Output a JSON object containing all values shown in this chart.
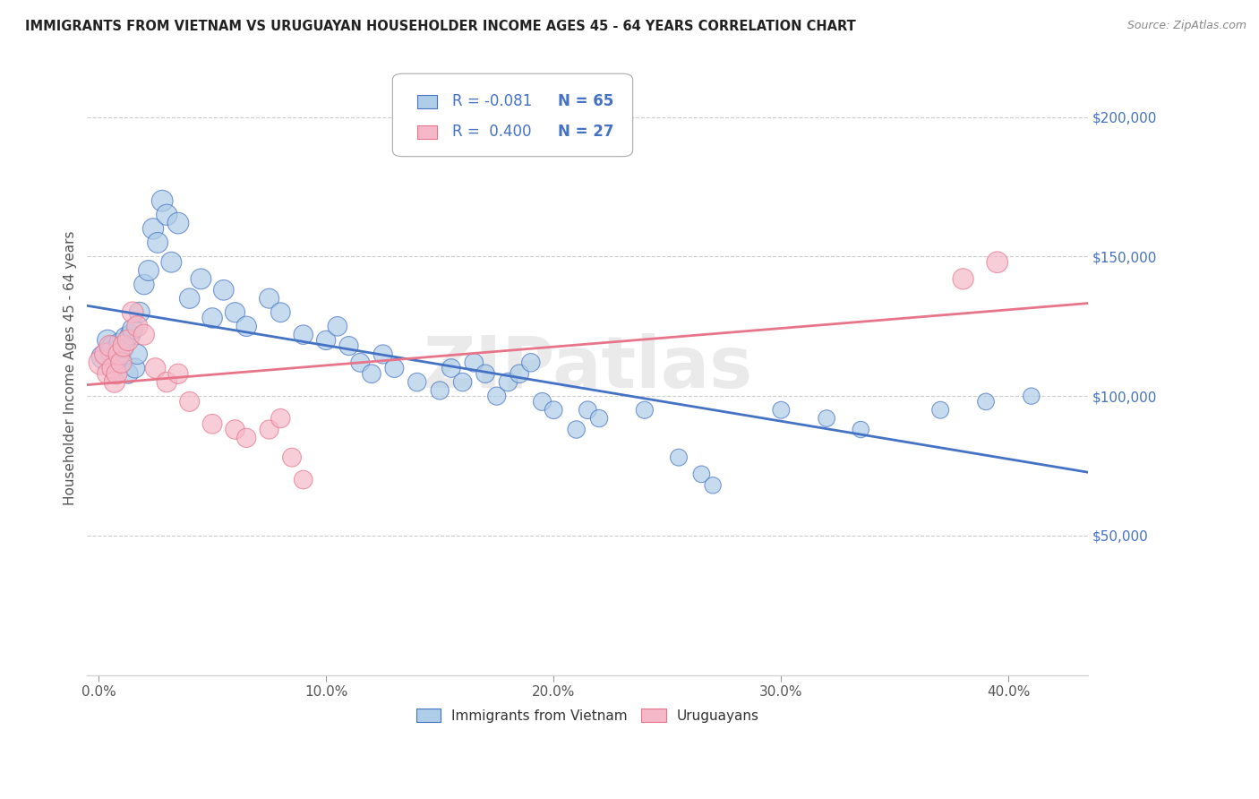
{
  "title": "IMMIGRANTS FROM VIETNAM VS URUGUAYAN HOUSEHOLDER INCOME AGES 45 - 64 YEARS CORRELATION CHART",
  "source": "Source: ZipAtlas.com",
  "ylabel": "Householder Income Ages 45 - 64 years",
  "xlabel_ticks": [
    "0.0%",
    "10.0%",
    "20.0%",
    "30.0%",
    "40.0%"
  ],
  "xlabel_vals": [
    0.0,
    0.1,
    0.2,
    0.3,
    0.4
  ],
  "ytick_labels": [
    "$50,000",
    "$100,000",
    "$150,000",
    "$200,000"
  ],
  "ytick_vals": [
    50000,
    100000,
    150000,
    200000
  ],
  "xlim": [
    -0.005,
    0.435
  ],
  "ylim": [
    0,
    220000
  ],
  "legend_label1": "Immigrants from Vietnam",
  "legend_label2": "Uruguayans",
  "r1": "-0.081",
  "n1": "65",
  "r2": "0.400",
  "n2": "27",
  "blue_color": "#aecde8",
  "pink_color": "#f5b8c8",
  "line_blue": "#4472c4",
  "line_pink": "#e8748a",
  "title_color": "#222222",
  "watermark": "ZIPatlas",
  "blue_scatter_x": [
    0.002,
    0.004,
    0.005,
    0.006,
    0.007,
    0.008,
    0.009,
    0.01,
    0.011,
    0.012,
    0.013,
    0.014,
    0.015,
    0.016,
    0.017,
    0.018,
    0.02,
    0.022,
    0.024,
    0.026,
    0.028,
    0.03,
    0.032,
    0.035,
    0.04,
    0.045,
    0.05,
    0.055,
    0.06,
    0.065,
    0.075,
    0.08,
    0.09,
    0.1,
    0.105,
    0.11,
    0.115,
    0.12,
    0.125,
    0.13,
    0.14,
    0.15,
    0.155,
    0.16,
    0.165,
    0.17,
    0.175,
    0.18,
    0.185,
    0.19,
    0.195,
    0.2,
    0.21,
    0.215,
    0.22,
    0.24,
    0.255,
    0.265,
    0.27,
    0.3,
    0.32,
    0.335,
    0.37,
    0.39,
    0.41
  ],
  "blue_scatter_y": [
    114000,
    120000,
    116000,
    118000,
    112000,
    115000,
    119000,
    113000,
    117000,
    121000,
    108000,
    122000,
    124000,
    110000,
    115000,
    130000,
    140000,
    145000,
    160000,
    155000,
    170000,
    165000,
    148000,
    162000,
    135000,
    142000,
    128000,
    138000,
    130000,
    125000,
    135000,
    130000,
    122000,
    120000,
    125000,
    118000,
    112000,
    108000,
    115000,
    110000,
    105000,
    102000,
    110000,
    105000,
    112000,
    108000,
    100000,
    105000,
    108000,
    112000,
    98000,
    95000,
    88000,
    95000,
    92000,
    95000,
    78000,
    72000,
    68000,
    95000,
    92000,
    88000,
    95000,
    98000,
    100000
  ],
  "pink_scatter_x": [
    0.001,
    0.003,
    0.004,
    0.005,
    0.006,
    0.007,
    0.008,
    0.009,
    0.01,
    0.011,
    0.013,
    0.015,
    0.017,
    0.02,
    0.025,
    0.03,
    0.035,
    0.04,
    0.05,
    0.06,
    0.065,
    0.075,
    0.08,
    0.085,
    0.09,
    0.38,
    0.395
  ],
  "pink_scatter_y": [
    112000,
    115000,
    108000,
    118000,
    110000,
    105000,
    108000,
    115000,
    112000,
    118000,
    120000,
    130000,
    125000,
    122000,
    110000,
    105000,
    108000,
    98000,
    90000,
    88000,
    85000,
    88000,
    92000,
    78000,
    70000,
    142000,
    148000
  ],
  "blue_sizes": [
    350,
    280,
    250,
    260,
    240,
    280,
    250,
    260,
    240,
    280,
    250,
    260,
    270,
    250,
    260,
    270,
    260,
    270,
    280,
    270,
    290,
    280,
    270,
    290,
    260,
    270,
    260,
    265,
    255,
    260,
    250,
    245,
    240,
    235,
    240,
    230,
    225,
    220,
    230,
    225,
    215,
    210,
    220,
    215,
    220,
    215,
    210,
    215,
    220,
    215,
    205,
    200,
    195,
    200,
    195,
    190,
    185,
    180,
    175,
    185,
    180,
    175,
    185,
    180,
    175
  ],
  "pink_sizes": [
    380,
    300,
    280,
    290,
    270,
    280,
    275,
    290,
    280,
    295,
    285,
    290,
    280,
    275,
    265,
    260,
    255,
    250,
    245,
    240,
    235,
    230,
    235,
    225,
    220,
    280,
    290
  ]
}
